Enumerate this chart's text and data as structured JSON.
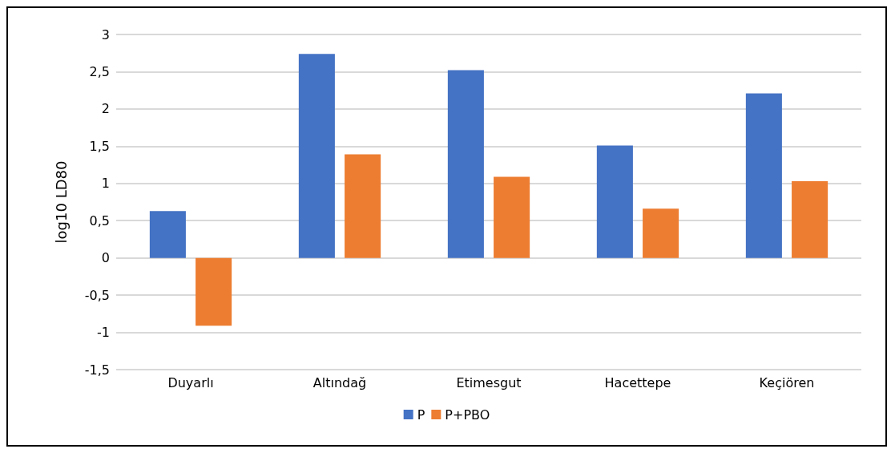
{
  "chart_data": {
    "type": "bar",
    "ylabel": "log10 LD80",
    "categories": [
      "Duyarlı",
      "Altındağ",
      "Etimesgut",
      "Hacettepe",
      "Keçiören"
    ],
    "series": [
      {
        "name": "P",
        "color": "#4472c4",
        "values": [
          0.63,
          2.74,
          2.52,
          1.51,
          2.21
        ]
      },
      {
        "name": "P+PBO",
        "color": "#ed7d31",
        "values": [
          -0.91,
          1.39,
          1.09,
          0.66,
          1.03
        ]
      }
    ],
    "ylim": [
      -1.5,
      3
    ],
    "yticks": [
      {
        "value": -1.5,
        "label": "-1,5"
      },
      {
        "value": -1,
        "label": "-1"
      },
      {
        "value": -0.5,
        "label": "-0,5"
      },
      {
        "value": 0,
        "label": "0"
      },
      {
        "value": 0.5,
        "label": "0,5"
      },
      {
        "value": 1,
        "label": "1"
      },
      {
        "value": 1.5,
        "label": "1,5"
      },
      {
        "value": 2,
        "label": "2"
      },
      {
        "value": 2.5,
        "label": "2,5"
      },
      {
        "value": 3,
        "label": "3"
      }
    ],
    "grid": "y",
    "legend": "bottom"
  }
}
